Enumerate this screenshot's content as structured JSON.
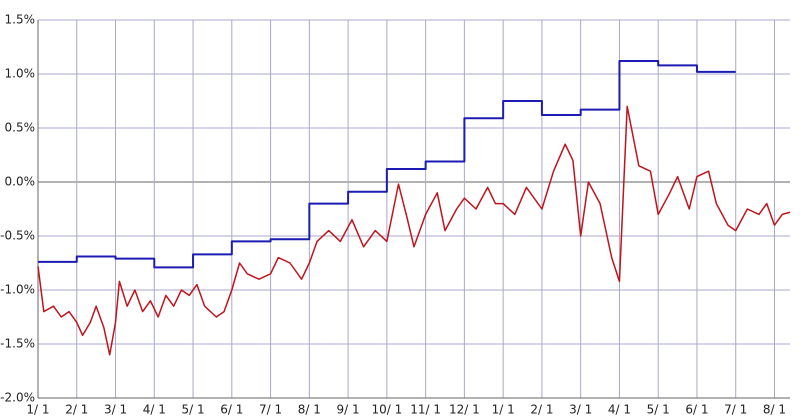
{
  "chart_data": {
    "type": "line",
    "xlim": [
      0,
      19.4
    ],
    "xticks": [
      {
        "value": 0,
        "label": "1/ 1"
      },
      {
        "value": 1,
        "label": "2/ 1"
      },
      {
        "value": 2,
        "label": "3/ 1"
      },
      {
        "value": 3,
        "label": "4/ 1"
      },
      {
        "value": 4,
        "label": "5/ 1"
      },
      {
        "value": 5,
        "label": "6/ 1"
      },
      {
        "value": 6,
        "label": "7/ 1"
      },
      {
        "value": 7,
        "label": "8/ 1"
      },
      {
        "value": 8,
        "label": "9/ 1"
      },
      {
        "value": 9,
        "label": "10/ 1"
      },
      {
        "value": 10,
        "label": "11/ 1"
      },
      {
        "value": 11,
        "label": "12/ 1"
      },
      {
        "value": 12,
        "label": "1/ 1"
      },
      {
        "value": 13,
        "label": "2/ 1"
      },
      {
        "value": 14,
        "label": "3/ 1"
      },
      {
        "value": 15,
        "label": "4/ 1"
      },
      {
        "value": 16,
        "label": "5/ 1"
      },
      {
        "value": 17,
        "label": "6/ 1"
      },
      {
        "value": 18,
        "label": "7/ 1"
      },
      {
        "value": 19,
        "label": "8/ 1"
      }
    ],
    "ylim": [
      -2.0,
      1.5
    ],
    "yticks": [
      {
        "value": -2.0,
        "label": "-2.0%"
      },
      {
        "value": -1.5,
        "label": "-1.5%"
      },
      {
        "value": -1.0,
        "label": "-1.0%"
      },
      {
        "value": -0.5,
        "label": "-0.5%"
      },
      {
        "value": 0,
        "label": "0.0%"
      },
      {
        "value": 0.5,
        "label": "0.5%"
      },
      {
        "value": 1.0,
        "label": "1.0%"
      },
      {
        "value": 1.5,
        "label": "1.5%"
      }
    ],
    "grid": true,
    "series": [
      {
        "color": "#1c1cb4",
        "step": true,
        "x": [
          0,
          1,
          2,
          3,
          4,
          5,
          6,
          7,
          8,
          9,
          10,
          11,
          12,
          13,
          14,
          15,
          16,
          17,
          18
        ],
        "values": [
          -0.74,
          -0.69,
          -0.71,
          -0.79,
          -0.67,
          -0.55,
          -0.53,
          -0.2,
          -0.09,
          0.12,
          0.19,
          0.59,
          0.75,
          0.62,
          0.67,
          1.12,
          1.08,
          1.02,
          1.02
        ]
      },
      {
        "color": "#c0141c",
        "step": false,
        "x": [
          0,
          0.15,
          0.4,
          0.6,
          0.8,
          1.0,
          1.15,
          1.35,
          1.5,
          1.7,
          1.85,
          2.0,
          2.1,
          2.3,
          2.5,
          2.7,
          2.9,
          3.1,
          3.3,
          3.5,
          3.7,
          3.9,
          4.1,
          4.3,
          4.6,
          4.8,
          5.0,
          5.2,
          5.4,
          5.7,
          6.0,
          6.2,
          6.5,
          6.8,
          7.0,
          7.2,
          7.5,
          7.8,
          8.1,
          8.4,
          8.7,
          9.0,
          9.3,
          9.5,
          9.7,
          10.0,
          10.3,
          10.5,
          10.8,
          11.0,
          11.3,
          11.6,
          11.8,
          12.0,
          12.3,
          12.6,
          12.8,
          13.0,
          13.3,
          13.6,
          13.8,
          14.0,
          14.2,
          14.5,
          14.8,
          15.0,
          15.2,
          15.5,
          15.8,
          16.0,
          16.3,
          16.5,
          16.8,
          17.0,
          17.3,
          17.5,
          17.8,
          18.0,
          18.3,
          18.6,
          18.8,
          19.0,
          19.2,
          19.4
        ],
        "values": [
          -0.78,
          -1.2,
          -1.15,
          -1.25,
          -1.2,
          -1.3,
          -1.42,
          -1.3,
          -1.15,
          -1.35,
          -1.6,
          -1.3,
          -0.92,
          -1.15,
          -1.0,
          -1.2,
          -1.1,
          -1.25,
          -1.05,
          -1.15,
          -1.0,
          -1.05,
          -0.95,
          -1.15,
          -1.25,
          -1.2,
          -1.0,
          -0.75,
          -0.85,
          -0.9,
          -0.85,
          -0.7,
          -0.75,
          -0.9,
          -0.75,
          -0.55,
          -0.45,
          -0.55,
          -0.35,
          -0.6,
          -0.45,
          -0.55,
          -0.02,
          -0.3,
          -0.6,
          -0.3,
          -0.1,
          -0.45,
          -0.25,
          -0.15,
          -0.25,
          -0.05,
          -0.2,
          -0.2,
          -0.3,
          -0.05,
          -0.15,
          -0.25,
          0.1,
          0.35,
          0.2,
          -0.5,
          0.0,
          -0.2,
          -0.7,
          -0.92,
          0.7,
          0.15,
          0.1,
          -0.3,
          -0.1,
          0.05,
          -0.25,
          0.05,
          0.1,
          -0.2,
          -0.4,
          -0.45,
          -0.25,
          -0.3,
          -0.2,
          -0.4,
          -0.3,
          -0.28
        ]
      }
    ]
  }
}
